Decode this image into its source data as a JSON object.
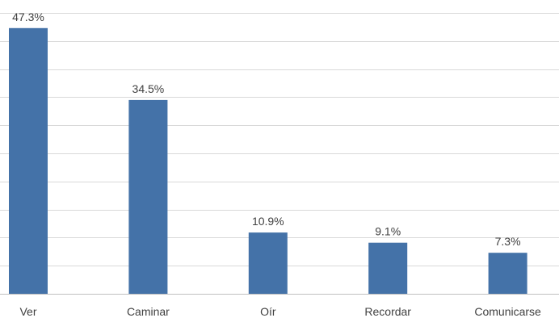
{
  "chart_data": {
    "type": "bar",
    "categories": [
      "Ver",
      "Caminar",
      "Oír",
      "Recordar",
      "Comunicarse"
    ],
    "values": [
      47.3,
      34.5,
      10.9,
      9.1,
      7.3
    ],
    "data_labels": [
      "47.3%",
      "34.5%",
      "10.9%",
      "9.1%",
      "7.3%"
    ],
    "title": "",
    "xlabel": "",
    "ylabel": "",
    "ylim": [
      0,
      50
    ],
    "grid": true,
    "colors": {
      "bar": "#4472a8",
      "grid": "#d9d9d9",
      "axis": "#bfbfbf",
      "text": "#404040"
    }
  }
}
